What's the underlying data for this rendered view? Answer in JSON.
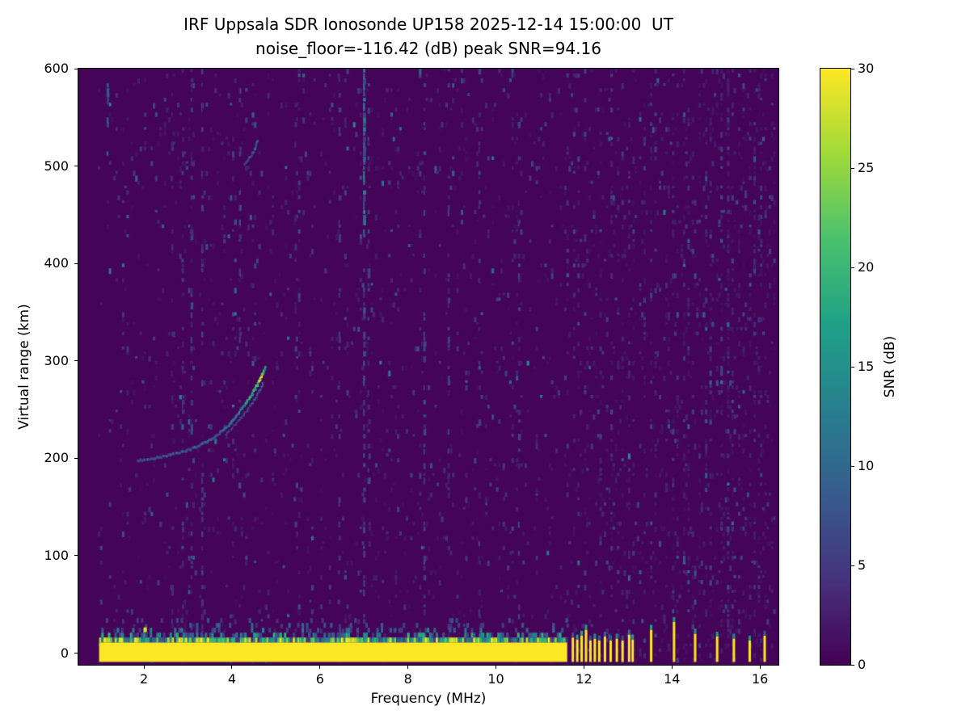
{
  "chart_data": {
    "type": "heatmap",
    "title": "IRF Uppsala SDR Ionosonde UP158 2025-12-14 15:00:00  UT",
    "subtitle": "noise_floor=-116.42 (dB) peak SNR=94.16",
    "station": "IRF Uppsala SDR Ionosonde UP158",
    "timestamp_ut": "2025-12-14 15:00:00 UT",
    "noise_floor_db": -116.42,
    "peak_snr_db": 94.16,
    "xlabel": "Frequency (MHz)",
    "ylabel": "Virtual range (km)",
    "colorbar_label": "SNR (dB)",
    "xlim": [
      0.51,
      16.42
    ],
    "ylim": [
      -12,
      600
    ],
    "clim": [
      0,
      30
    ],
    "x_ticks": [
      2,
      4,
      6,
      8,
      10,
      12,
      14,
      16
    ],
    "y_ticks": [
      0,
      100,
      200,
      300,
      400,
      500,
      600
    ],
    "colorbar_ticks": [
      0,
      5,
      10,
      15,
      20,
      25,
      30
    ],
    "colormap": "viridis",
    "colormap_stops": [
      "#440154",
      "#46327e",
      "#365c8d",
      "#277f8e",
      "#1fa187",
      "#4ac16d",
      "#a0da39",
      "#fde725"
    ],
    "grid": false,
    "legend": "colorbar-right",
    "noise": {
      "seed": 42,
      "f_start": 0.95,
      "f_end": 16.35,
      "df": 0.05,
      "dkm": 5,
      "density": 0.05,
      "mean_snr": 2.0
    },
    "features": {
      "ground_band": {
        "f_start": 0.98,
        "f_end": 11.62,
        "km_bottom": -9,
        "km_top": 11,
        "snr": 30
      },
      "pulses": [
        {
          "f": 11.72,
          "km_top": 16
        },
        {
          "f": 11.82,
          "km_top": 14
        },
        {
          "f": 11.92,
          "km_top": 18
        },
        {
          "f": 12.02,
          "km_top": 24
        },
        {
          "f": 12.12,
          "km_top": 13
        },
        {
          "f": 12.22,
          "km_top": 15
        },
        {
          "f": 12.32,
          "km_top": 13
        },
        {
          "f": 12.45,
          "km_top": 17
        },
        {
          "f": 12.58,
          "km_top": 13
        },
        {
          "f": 12.72,
          "km_top": 15
        },
        {
          "f": 12.85,
          "km_top": 13
        },
        {
          "f": 13.0,
          "km_top": 19
        },
        {
          "f": 13.08,
          "km_top": 14
        },
        {
          "f": 13.5,
          "km_top": 24
        },
        {
          "f": 14.02,
          "km_top": 32
        },
        {
          "f": 14.5,
          "km_top": 20
        },
        {
          "f": 15.0,
          "km_top": 17
        },
        {
          "f": 15.38,
          "km_top": 15
        },
        {
          "f": 15.74,
          "km_top": 13
        },
        {
          "f": 16.08,
          "km_top": 18
        }
      ],
      "echo_trace": [
        [
          1.85,
          199,
          6
        ],
        [
          2.0,
          200,
          7
        ],
        [
          2.2,
          201,
          7
        ],
        [
          2.4,
          203,
          7
        ],
        [
          2.6,
          205,
          8
        ],
        [
          2.8,
          207,
          8
        ],
        [
          3.0,
          210,
          8
        ],
        [
          3.2,
          214,
          8
        ],
        [
          3.4,
          218,
          9
        ],
        [
          3.6,
          224,
          9
        ],
        [
          3.8,
          231,
          10
        ],
        [
          4.0,
          240,
          11
        ],
        [
          4.15,
          249,
          13
        ],
        [
          4.3,
          258,
          15
        ],
        [
          4.42,
          266,
          17
        ],
        [
          4.52,
          274,
          19
        ],
        [
          4.6,
          281,
          22
        ],
        [
          4.66,
          287,
          24
        ],
        [
          4.71,
          292,
          18
        ],
        [
          4.74,
          296,
          12
        ]
      ],
      "echo_trace_secondary": [
        [
          3.85,
          226,
          5
        ],
        [
          4.0,
          233,
          5
        ],
        [
          4.15,
          241,
          6
        ],
        [
          4.3,
          249,
          6
        ],
        [
          4.42,
          256,
          7
        ],
        [
          4.52,
          263,
          8
        ],
        [
          4.62,
          271,
          9
        ],
        [
          4.7,
          279,
          8
        ]
      ],
      "second_hop": [
        [
          4.28,
          503,
          6
        ],
        [
          4.4,
          511,
          8
        ],
        [
          4.5,
          519,
          9
        ],
        [
          4.58,
          528,
          7
        ]
      ],
      "rfi_streaks": [
        {
          "f": 1.15,
          "km": [
            505,
            585
          ],
          "snr": 9,
          "density": 0.5
        },
        {
          "f": 2.02,
          "km": [
            -5,
            28
          ],
          "snr": 9,
          "density": 0.7
        },
        {
          "f": 2.62,
          "km": [
            -5,
            600
          ],
          "snr": 4,
          "density": 0.2
        },
        {
          "f": 2.86,
          "km": [
            -5,
            600
          ],
          "snr": 4,
          "density": 0.22
        },
        {
          "f": 3.06,
          "km": [
            -5,
            600
          ],
          "snr": 6,
          "density": 0.3
        },
        {
          "f": 3.3,
          "km": [
            -5,
            600
          ],
          "snr": 5,
          "density": 0.3
        },
        {
          "f": 4.16,
          "km": [
            320,
            600
          ],
          "snr": 6,
          "density": 0.25
        },
        {
          "f": 5.42,
          "km": [
            -5,
            600
          ],
          "snr": 4,
          "density": 0.18
        },
        {
          "f": 6.42,
          "km": [
            -5,
            600
          ],
          "snr": 5,
          "density": 0.22
        },
        {
          "f": 6.98,
          "km": [
            430,
            600
          ],
          "snr": 12,
          "density": 0.85
        },
        {
          "f": 6.98,
          "km": [
            -5,
            430
          ],
          "snr": 7,
          "density": 0.3
        },
        {
          "f": 7.08,
          "km": [
            150,
            600
          ],
          "snr": 6,
          "density": 0.25
        },
        {
          "f": 8.35,
          "km": [
            -5,
            600
          ],
          "snr": 6,
          "density": 0.28
        },
        {
          "f": 8.9,
          "km": [
            -5,
            600
          ],
          "snr": 5,
          "density": 0.22
        },
        {
          "f": 9.6,
          "km": [
            -5,
            600
          ],
          "snr": 5,
          "density": 0.22
        },
        {
          "f": 10.5,
          "km": [
            -5,
            600
          ],
          "snr": 5,
          "density": 0.2
        }
      ],
      "blips": [
        [
          2.02,
          24,
          28
        ]
      ]
    }
  }
}
